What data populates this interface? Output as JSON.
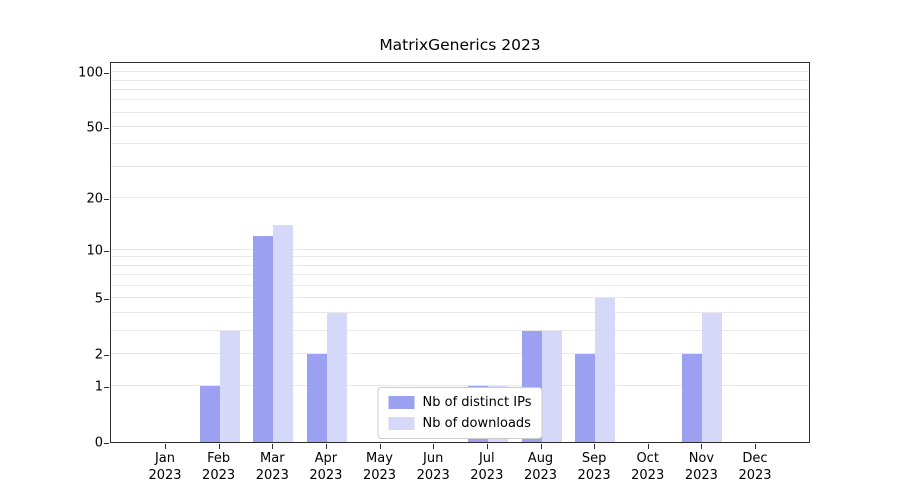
{
  "chart_data": {
    "type": "bar",
    "title": "MatrixGenerics 2023",
    "months": [
      "Jan",
      "Feb",
      "Mar",
      "Apr",
      "May",
      "Jun",
      "Jul",
      "Aug",
      "Sep",
      "Oct",
      "Nov",
      "Dec"
    ],
    "year": "2023",
    "series": [
      {
        "name": "Nb of distinct IPs",
        "color": "#9ba0f0",
        "values": [
          0,
          1,
          12,
          2,
          0,
          0,
          1,
          3,
          2,
          0,
          2,
          0
        ]
      },
      {
        "name": "Nb of downloads",
        "color": "#d6d8f9",
        "values": [
          0,
          3,
          14,
          4,
          0,
          0,
          1,
          3,
          5,
          0,
          4,
          0
        ]
      }
    ],
    "xlabel": "",
    "ylabel": "",
    "y_scale": "log1p",
    "y_max": 115,
    "y_ticks": [
      0,
      1,
      2,
      5,
      10,
      20,
      50,
      100
    ],
    "grid_values": [
      1,
      2,
      3,
      4,
      5,
      6,
      7,
      8,
      9,
      10,
      20,
      30,
      40,
      50,
      60,
      70,
      80,
      90,
      100
    ],
    "grid": "horizontal, light gray, behind bars",
    "legend_position": "lower center inside plot",
    "colors": {
      "grid": "#e8e8e8",
      "spine": "#2b2b2b",
      "legend_border": "#cccccc"
    }
  }
}
